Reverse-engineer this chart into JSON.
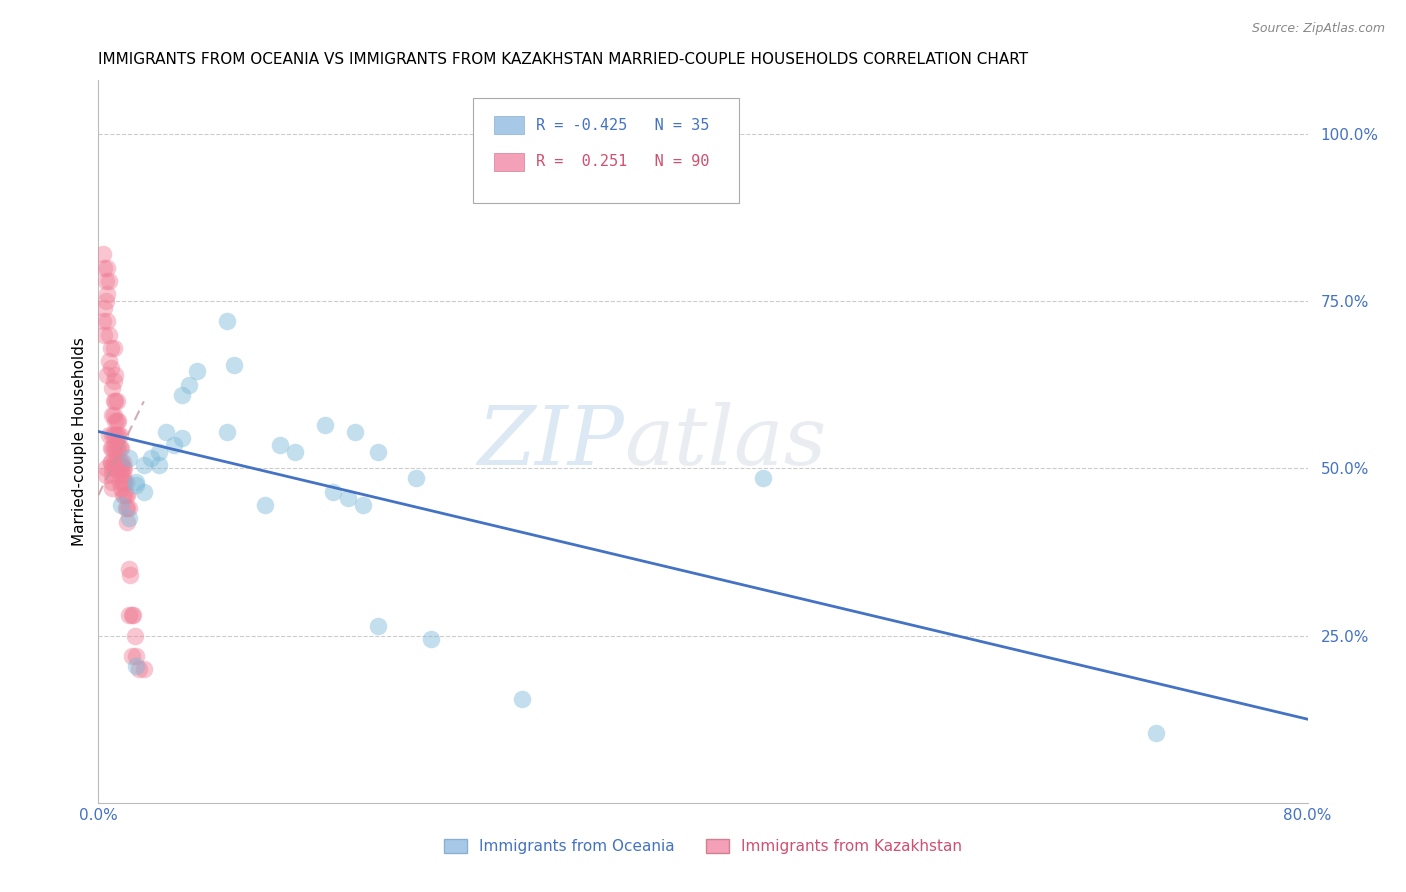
{
  "title": "IMMIGRANTS FROM OCEANIA VS IMMIGRANTS FROM KAZAKHSTAN MARRIED-COUPLE HOUSEHOLDS CORRELATION CHART",
  "source": "Source: ZipAtlas.com",
  "ylabel": "Married-couple Households",
  "x_label_blue": "Immigrants from Oceania",
  "x_label_pink": "Immigrants from Kazakhstan",
  "right_ytick_labels": [
    "100.0%",
    "75.0%",
    "50.0%",
    "25.0%"
  ],
  "right_ytick_values": [
    1.0,
    0.75,
    0.5,
    0.25
  ],
  "xlim": [
    0.0,
    0.8
  ],
  "ylim": [
    0.0,
    1.08
  ],
  "legend_blue_R": "-0.425",
  "legend_blue_N": "35",
  "legend_pink_R": " 0.251",
  "legend_pink_N": "90",
  "blue_scatter_x": [
    0.085,
    0.02,
    0.04,
    0.055,
    0.025,
    0.03,
    0.035,
    0.04,
    0.05,
    0.045,
    0.025,
    0.03,
    0.055,
    0.06,
    0.065,
    0.085,
    0.09,
    0.12,
    0.15,
    0.17,
    0.185,
    0.21,
    0.175,
    0.165,
    0.13,
    0.11,
    0.155,
    0.22,
    0.44,
    0.7,
    0.02,
    0.015,
    0.28,
    0.185,
    0.025
  ],
  "blue_scatter_y": [
    0.72,
    0.515,
    0.525,
    0.545,
    0.48,
    0.505,
    0.515,
    0.505,
    0.535,
    0.555,
    0.475,
    0.465,
    0.61,
    0.625,
    0.645,
    0.555,
    0.655,
    0.535,
    0.565,
    0.555,
    0.525,
    0.485,
    0.445,
    0.455,
    0.525,
    0.445,
    0.465,
    0.245,
    0.485,
    0.105,
    0.425,
    0.445,
    0.155,
    0.265,
    0.205
  ],
  "pink_scatter_x": [
    0.003,
    0.004,
    0.005,
    0.006,
    0.005,
    0.004,
    0.003,
    0.004,
    0.005,
    0.005,
    0.006,
    0.007,
    0.008,
    0.007,
    0.006,
    0.007,
    0.008,
    0.008,
    0.006,
    0.007,
    0.008,
    0.009,
    0.009,
    0.009,
    0.009,
    0.008,
    0.009,
    0.009,
    0.009,
    0.009,
    0.01,
    0.01,
    0.01,
    0.01,
    0.01,
    0.01,
    0.01,
    0.011,
    0.011,
    0.011,
    0.011,
    0.011,
    0.011,
    0.011,
    0.012,
    0.012,
    0.012,
    0.012,
    0.012,
    0.012,
    0.013,
    0.013,
    0.013,
    0.013,
    0.013,
    0.014,
    0.014,
    0.014,
    0.014,
    0.014,
    0.015,
    0.015,
    0.015,
    0.015,
    0.015,
    0.016,
    0.016,
    0.016,
    0.016,
    0.016,
    0.017,
    0.017,
    0.017,
    0.018,
    0.018,
    0.018,
    0.019,
    0.019,
    0.019,
    0.02,
    0.02,
    0.02,
    0.021,
    0.022,
    0.022,
    0.023,
    0.024,
    0.025,
    0.027,
    0.03
  ],
  "pink_scatter_y": [
    0.82,
    0.8,
    0.78,
    0.76,
    0.75,
    0.74,
    0.72,
    0.7,
    0.5,
    0.49,
    0.8,
    0.78,
    0.68,
    0.66,
    0.64,
    0.55,
    0.53,
    0.51,
    0.72,
    0.7,
    0.65,
    0.62,
    0.58,
    0.55,
    0.53,
    0.51,
    0.5,
    0.49,
    0.48,
    0.47,
    0.68,
    0.63,
    0.6,
    0.58,
    0.55,
    0.53,
    0.51,
    0.64,
    0.6,
    0.57,
    0.55,
    0.53,
    0.51,
    0.5,
    0.6,
    0.57,
    0.55,
    0.53,
    0.51,
    0.5,
    0.57,
    0.55,
    0.53,
    0.51,
    0.5,
    0.55,
    0.53,
    0.51,
    0.5,
    0.48,
    0.53,
    0.51,
    0.5,
    0.49,
    0.47,
    0.51,
    0.5,
    0.49,
    0.48,
    0.46,
    0.5,
    0.48,
    0.46,
    0.48,
    0.46,
    0.44,
    0.46,
    0.44,
    0.42,
    0.44,
    0.35,
    0.28,
    0.34,
    0.28,
    0.22,
    0.28,
    0.25,
    0.22,
    0.2,
    0.2
  ],
  "blue_line_x": [
    0.0,
    0.8
  ],
  "blue_line_y": [
    0.555,
    0.125
  ],
  "pink_line_x": [
    0.0,
    0.03
  ],
  "pink_line_y": [
    0.46,
    0.6
  ],
  "watermark_zip": "ZIP",
  "watermark_atlas": "atlas",
  "title_fontsize": 11,
  "source_fontsize": 9,
  "blue_scatter_color": "#7ab8d8",
  "pink_scatter_color": "#f08098",
  "blue_line_color": "#4472c4",
  "pink_line_color": "#c8909a",
  "grid_color": "#cccccc",
  "legend_blue_color": "#4472c4",
  "legend_pink_color": "#d05070",
  "legend_blue_sq": "#a8c8e8",
  "legend_pink_sq": "#f4a0b8"
}
